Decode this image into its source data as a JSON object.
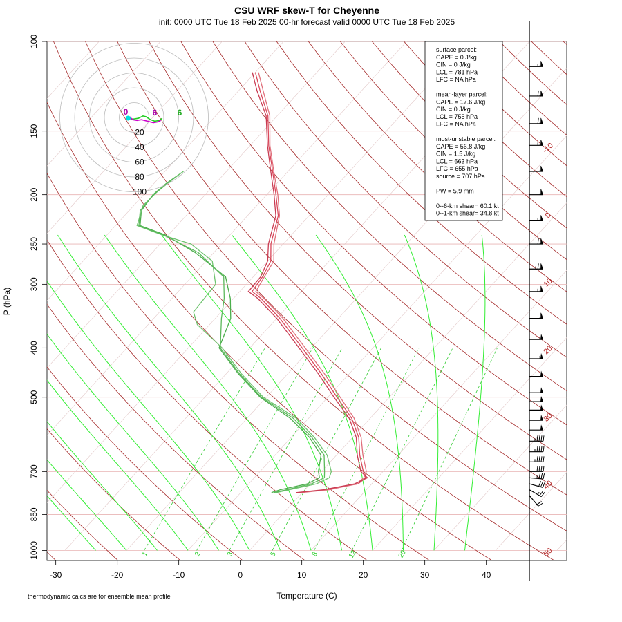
{
  "chart_data": {
    "type": "line",
    "title": "CSU WRF skew-T for Cheyenne",
    "subtitle": "init: 0000 UTC Tue 18 Feb 2025    00-hr forecast valid 0000 UTC Tue 18 Feb 2025",
    "xlabel": "Temperature (C)",
    "ylabel": "P (hPa)",
    "x_ticks": [
      "-30",
      "-20",
      "-10",
      "0",
      "10",
      "20",
      "30",
      "40"
    ],
    "p_ticks": [
      "100",
      "150",
      "200",
      "250",
      "300",
      "400",
      "500",
      "700",
      "850",
      "1000"
    ],
    "footnote": "thermodynamic calcs are for ensemble mean profile",
    "isotherm_labels": [
      "-10",
      "0",
      "10",
      "20",
      "30",
      "40",
      "50"
    ],
    "mixing_ratio_labels": [
      "1",
      "2",
      "3",
      "5",
      "8",
      "12",
      "20"
    ],
    "hodograph": {
      "ring_labels": [
        "20",
        "40",
        "60",
        "80",
        "100"
      ],
      "segment_labels": [
        "0",
        "6",
        "6"
      ],
      "trace": [
        [
          -8,
          0
        ],
        [
          -4,
          -2
        ],
        [
          0,
          -2
        ],
        [
          6,
          -1
        ],
        [
          12,
          2
        ],
        [
          16,
          1
        ],
        [
          22,
          -3
        ],
        [
          28,
          -5
        ],
        [
          34,
          -4
        ],
        [
          38,
          -1
        ]
      ],
      "trace2": [
        [
          -6,
          1
        ],
        [
          -2,
          -3
        ],
        [
          4,
          -4
        ],
        [
          10,
          -3
        ],
        [
          18,
          -5
        ],
        [
          26,
          -7
        ],
        [
          32,
          -6
        ],
        [
          36,
          -4
        ]
      ]
    },
    "info_box": [
      "surface parcel:",
      "CAPE = 0 J/kg",
      "CIN = 0 J/kg",
      "LCL = 781 hPa",
      "LFC = NA hPa",
      "",
      "mean-layer parcel:",
      "CAPE = 17.6 J/kg",
      "CIN = 0 J/kg",
      "LCL = 755 hPa",
      "LFC = NA hPa",
      "",
      "most-unstable parcel:",
      "CAPE = 56.8 J/kg",
      "CIN = 1.5 J/kg",
      "LCL = 663 hPa",
      "LFC = 655 hPa",
      "source = 707 hPa",
      "",
      "PW =  5.9 mm",
      "",
      "0--6-km shear= 60.1 kt",
      "0--1-km shear= 34.8 kt"
    ],
    "temperature_series": [
      {
        "name": "",
        "points": [
          [
            770,
            -0.5
          ],
          [
            760,
            3.5
          ],
          [
            740,
            7.8
          ],
          [
            720,
            8.1
          ],
          [
            700,
            6.8
          ],
          [
            650,
            3.8
          ],
          [
            600,
            1.0
          ],
          [
            550,
            -3.0
          ],
          [
            500,
            -8.5
          ],
          [
            450,
            -14.5
          ],
          [
            400,
            -21.5
          ],
          [
            350,
            -29.5
          ],
          [
            320,
            -35.5
          ],
          [
            310,
            -38.0
          ],
          [
            290,
            -38.5
          ],
          [
            270,
            -39.5
          ],
          [
            250,
            -42.0
          ],
          [
            220,
            -45.0
          ],
          [
            200,
            -48.5
          ],
          [
            180,
            -52.5
          ],
          [
            160,
            -57.0
          ],
          [
            140,
            -61.5
          ],
          [
            125,
            -66.5
          ],
          [
            115,
            -70.0
          ]
        ]
      },
      {
        "name": "",
        "points": [
          [
            770,
            -0.2
          ],
          [
            760,
            4.0
          ],
          [
            740,
            7.5
          ],
          [
            720,
            7.8
          ],
          [
            700,
            7.3
          ],
          [
            650,
            4.3
          ],
          [
            600,
            1.4
          ],
          [
            550,
            -2.6
          ],
          [
            500,
            -8.0
          ],
          [
            450,
            -14.0
          ],
          [
            400,
            -21.0
          ],
          [
            350,
            -29.0
          ],
          [
            320,
            -35.0
          ],
          [
            310,
            -37.4
          ],
          [
            290,
            -38.2
          ],
          [
            270,
            -39.0
          ],
          [
            250,
            -41.5
          ],
          [
            220,
            -44.8
          ],
          [
            200,
            -48.2
          ],
          [
            180,
            -52.3
          ],
          [
            160,
            -56.8
          ],
          [
            140,
            -61.2
          ],
          [
            125,
            -66.0
          ],
          [
            115,
            -69.5
          ]
        ]
      },
      {
        "name": "",
        "points": [
          [
            770,
            -1.0
          ],
          [
            760,
            3.0
          ],
          [
            740,
            7.2
          ],
          [
            720,
            8.4
          ],
          [
            700,
            6.4
          ],
          [
            650,
            3.4
          ],
          [
            600,
            0.6
          ],
          [
            550,
            -3.4
          ],
          [
            500,
            -9.0
          ],
          [
            450,
            -15.0
          ],
          [
            400,
            -22.0
          ],
          [
            350,
            -30.0
          ],
          [
            320,
            -36.0
          ],
          [
            310,
            -38.6
          ],
          [
            290,
            -38.8
          ],
          [
            270,
            -40.0
          ],
          [
            250,
            -42.4
          ],
          [
            220,
            -45.4
          ],
          [
            200,
            -48.8
          ],
          [
            180,
            -52.8
          ],
          [
            160,
            -57.2
          ],
          [
            140,
            -61.8
          ],
          [
            125,
            -67.0
          ],
          [
            115,
            -70.5
          ]
        ]
      }
    ],
    "dewpoint_series": [
      {
        "name": "",
        "points": [
          [
            770,
            -5.0
          ],
          [
            760,
            -4.0
          ],
          [
            740,
            -0.5
          ],
          [
            720,
            0.6
          ],
          [
            700,
            -0.5
          ],
          [
            650,
            -2.5
          ],
          [
            600,
            -7.0
          ],
          [
            550,
            -13.0
          ],
          [
            500,
            -21.0
          ],
          [
            450,
            -28.0
          ],
          [
            400,
            -35.0
          ],
          [
            350,
            -37.5
          ],
          [
            320,
            -40.5
          ],
          [
            290,
            -44.5
          ],
          [
            260,
            -53.0
          ],
          [
            240,
            -60.5
          ],
          [
            230,
            -66.0
          ],
          [
            215,
            -68.0
          ],
          [
            200,
            -68.5
          ],
          [
            190,
            -68.0
          ],
          [
            180,
            -67.0
          ]
        ]
      },
      {
        "name": "",
        "points": [
          [
            770,
            -4.2
          ],
          [
            760,
            -2.5
          ],
          [
            740,
            1.0
          ],
          [
            720,
            2.2
          ],
          [
            700,
            1.6
          ],
          [
            650,
            -1.5
          ],
          [
            600,
            -6.2
          ],
          [
            550,
            -12.0
          ],
          [
            500,
            -20.5
          ],
          [
            450,
            -27.5
          ],
          [
            400,
            -34.5
          ],
          [
            360,
            -42.0
          ],
          [
            340,
            -44.5
          ],
          [
            300,
            -45.0
          ],
          [
            270,
            -49.0
          ],
          [
            250,
            -55.0
          ],
          [
            240,
            -61.0
          ],
          [
            230,
            -66.5
          ],
          [
            210,
            -68.5
          ],
          [
            195,
            -68.2
          ],
          [
            180,
            -67.0
          ]
        ]
      },
      {
        "name": "",
        "points": [
          [
            770,
            -4.6
          ],
          [
            760,
            -3.0
          ],
          [
            740,
            0.2
          ],
          [
            720,
            1.4
          ],
          [
            700,
            0.5
          ],
          [
            650,
            -2.0
          ],
          [
            600,
            -6.6
          ],
          [
            550,
            -12.5
          ],
          [
            500,
            -20.8
          ],
          [
            450,
            -27.8
          ],
          [
            400,
            -34.8
          ],
          [
            350,
            -39.0
          ],
          [
            320,
            -41.5
          ],
          [
            290,
            -44.8
          ],
          [
            260,
            -52.5
          ],
          [
            240,
            -60.8
          ],
          [
            230,
            -66.2
          ],
          [
            215,
            -68.2
          ],
          [
            200,
            -68.4
          ],
          [
            185,
            -67.5
          ]
        ]
      }
    ],
    "wind_barbs": [
      {
        "p": 112,
        "dir": 270,
        "speed": 65
      },
      {
        "p": 128,
        "dir": 270,
        "speed": 70
      },
      {
        "p": 145,
        "dir": 270,
        "speed": 70
      },
      {
        "p": 160,
        "dir": 270,
        "speed": 65
      },
      {
        "p": 180,
        "dir": 270,
        "speed": 60
      },
      {
        "p": 200,
        "dir": 270,
        "speed": 60
      },
      {
        "p": 225,
        "dir": 270,
        "speed": 65
      },
      {
        "p": 250,
        "dir": 270,
        "speed": 70
      },
      {
        "p": 280,
        "dir": 270,
        "speed": 75
      },
      {
        "p": 310,
        "dir": 270,
        "speed": 65
      },
      {
        "p": 350,
        "dir": 270,
        "speed": 60
      },
      {
        "p": 385,
        "dir": 270,
        "speed": 55
      },
      {
        "p": 420,
        "dir": 270,
        "speed": 55
      },
      {
        "p": 455,
        "dir": 270,
        "speed": 50
      },
      {
        "p": 490,
        "dir": 270,
        "speed": 50
      },
      {
        "p": 510,
        "dir": 270,
        "speed": 50
      },
      {
        "p": 530,
        "dir": 270,
        "speed": 50
      },
      {
        "p": 555,
        "dir": 270,
        "speed": 50
      },
      {
        "p": 580,
        "dir": 270,
        "speed": 50
      },
      {
        "p": 610,
        "dir": 270,
        "speed": 45
      },
      {
        "p": 640,
        "dir": 270,
        "speed": 45
      },
      {
        "p": 670,
        "dir": 270,
        "speed": 45
      },
      {
        "p": 700,
        "dir": 270,
        "speed": 40
      },
      {
        "p": 720,
        "dir": 275,
        "speed": 35
      },
      {
        "p": 740,
        "dir": 285,
        "speed": 30
      },
      {
        "p": 760,
        "dir": 300,
        "speed": 25
      },
      {
        "p": 780,
        "dir": 320,
        "speed": 20
      }
    ]
  }
}
